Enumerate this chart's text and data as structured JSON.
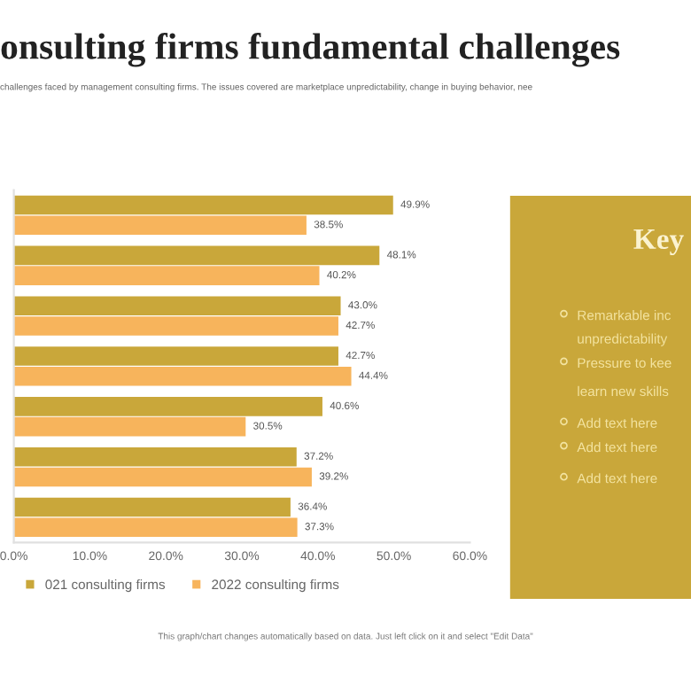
{
  "chart_data": {
    "type": "bar",
    "orientation": "horizontal",
    "title": "onsulting firms fundamental challenges",
    "subtitle": "challenges faced by management consulting firms. The issues covered are marketplace unpredictability, change in buying behavior, nee",
    "categories": [
      null,
      null,
      null,
      null,
      null,
      null,
      null
    ],
    "series": [
      {
        "name": "021 consulting firms",
        "color": "#c9a73a",
        "values": [
          49.9,
          48.1,
          43.0,
          42.7,
          40.6,
          37.2,
          36.4
        ],
        "value_labels": [
          "49.9%",
          "48.1%",
          "43.0%",
          "42.7%",
          "40.6%",
          "37.2%",
          "36.4%"
        ]
      },
      {
        "name": "2022 consulting firms",
        "color": "#f7b45c",
        "values": [
          38.5,
          40.2,
          42.7,
          44.4,
          30.5,
          39.2,
          37.3
        ],
        "value_labels": [
          "38.5%",
          "40.2%",
          "42.7%",
          "44.4%",
          "30.5%",
          "39.2%",
          "37.3%"
        ]
      }
    ],
    "xlim": [
      0,
      60
    ],
    "xticks": [
      {
        "value": 0,
        "label": "0.0%"
      },
      {
        "value": 10,
        "label": "10.0%"
      },
      {
        "value": 20,
        "label": "20.0%"
      },
      {
        "value": 30,
        "label": "30.0%"
      },
      {
        "value": 40,
        "label": "40.0%"
      },
      {
        "value": 50,
        "label": "50.0%"
      },
      {
        "value": 60,
        "label": "60.0%"
      }
    ],
    "legend": "bottom",
    "grid": false,
    "annotations": [
      "Key",
      "Remarkable inc",
      "unpredictability",
      "Pressure to kee",
      "learn new skills",
      "Add text here",
      "Add text here",
      "Add text here",
      "This graph/chart changes automatically based on data. Just left click on it and select \"Edit Data\""
    ]
  }
}
